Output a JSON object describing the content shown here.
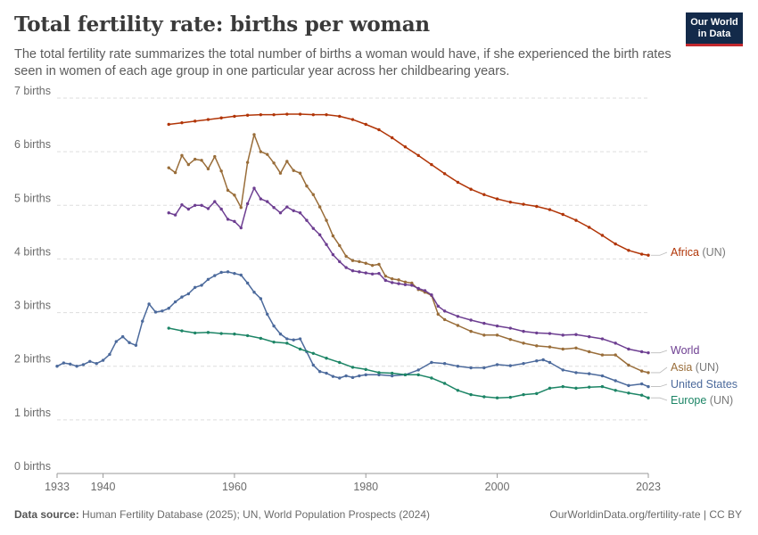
{
  "header": {
    "title": "Total fertility rate: births per woman",
    "subtitle": "The total fertility rate summarizes the total number of births a woman would have, if she experienced the birth rates seen in women of each age group in one particular year across her childbearing years.",
    "logo_line1": "Our World",
    "logo_line2": "in Data"
  },
  "footer": {
    "source_label": "Data source:",
    "source_text": "Human Fertility Database (2025); UN, World Population Prospects (2024)",
    "url_text": "OurWorldinData.org/fertility-rate | CC BY"
  },
  "chart_data": {
    "type": "line",
    "title": "Total fertility rate: births per woman",
    "xlabel": "",
    "ylabel": "",
    "xlim": [
      1933,
      2023
    ],
    "ylim": [
      0,
      7
    ],
    "grid": "horizontal-dashed",
    "legend": "right (inline labels)",
    "y_ticks": [
      {
        "value": 0,
        "label": "0 births"
      },
      {
        "value": 1,
        "label": "1 births"
      },
      {
        "value": 2,
        "label": "2 births"
      },
      {
        "value": 3,
        "label": "3 births"
      },
      {
        "value": 4,
        "label": "4 births"
      },
      {
        "value": 5,
        "label": "5 births"
      },
      {
        "value": 6,
        "label": "6 births"
      },
      {
        "value": 7,
        "label": "7 births"
      }
    ],
    "x_ticks": [
      {
        "value": 1933,
        "label": "1933"
      },
      {
        "value": 1940,
        "label": "1940"
      },
      {
        "value": 1960,
        "label": "1960"
      },
      {
        "value": 1980,
        "label": "1980"
      },
      {
        "value": 2000,
        "label": "2000"
      },
      {
        "value": 2023,
        "label": "2023"
      }
    ],
    "series": [
      {
        "name": "Africa",
        "suffix": "(UN)",
        "color": "#b13507",
        "x": [
          1950,
          1952,
          1954,
          1956,
          1958,
          1960,
          1962,
          1964,
          1966,
          1968,
          1970,
          1972,
          1974,
          1976,
          1978,
          1980,
          1982,
          1984,
          1986,
          1988,
          1990,
          1992,
          1994,
          1996,
          1998,
          2000,
          2002,
          2004,
          2006,
          2008,
          2010,
          2012,
          2014,
          2016,
          2018,
          2020,
          2022,
          2023
        ],
        "y": [
          6.51,
          6.54,
          6.57,
          6.6,
          6.63,
          6.66,
          6.68,
          6.69,
          6.69,
          6.7,
          6.7,
          6.69,
          6.69,
          6.66,
          6.6,
          6.51,
          6.41,
          6.26,
          6.09,
          5.93,
          5.76,
          5.59,
          5.43,
          5.3,
          5.2,
          5.12,
          5.06,
          5.02,
          4.98,
          4.92,
          4.83,
          4.72,
          4.59,
          4.44,
          4.28,
          4.16,
          4.09,
          4.07
        ]
      },
      {
        "name": "Asia",
        "suffix": "(UN)",
        "color": "#996d39",
        "x": [
          1950,
          1951,
          1952,
          1953,
          1954,
          1955,
          1956,
          1957,
          1958,
          1959,
          1960,
          1961,
          1962,
          1963,
          1964,
          1965,
          1966,
          1967,
          1968,
          1969,
          1970,
          1971,
          1972,
          1973,
          1974,
          1975,
          1976,
          1977,
          1978,
          1979,
          1980,
          1981,
          1982,
          1983,
          1984,
          1985,
          1986,
          1987,
          1988,
          1989,
          1990,
          1991,
          1992,
          1994,
          1996,
          1998,
          2000,
          2002,
          2004,
          2006,
          2008,
          2010,
          2012,
          2014,
          2016,
          2018,
          2020,
          2022,
          2023
        ],
        "y": [
          5.7,
          5.61,
          5.93,
          5.76,
          5.86,
          5.84,
          5.68,
          5.91,
          5.64,
          5.28,
          5.19,
          4.96,
          5.8,
          6.32,
          6.0,
          5.95,
          5.79,
          5.6,
          5.82,
          5.65,
          5.6,
          5.36,
          5.2,
          4.97,
          4.72,
          4.43,
          4.25,
          4.05,
          3.97,
          3.95,
          3.92,
          3.88,
          3.9,
          3.68,
          3.63,
          3.61,
          3.57,
          3.55,
          3.43,
          3.38,
          3.32,
          2.97,
          2.87,
          2.76,
          2.65,
          2.58,
          2.58,
          2.5,
          2.43,
          2.38,
          2.36,
          2.32,
          2.34,
          2.27,
          2.21,
          2.21,
          2.02,
          1.91,
          1.88
        ]
      },
      {
        "name": "World",
        "suffix": "",
        "color": "#6d3e91",
        "x": [
          1950,
          1951,
          1952,
          1953,
          1954,
          1955,
          1956,
          1957,
          1958,
          1959,
          1960,
          1961,
          1962,
          1963,
          1964,
          1965,
          1966,
          1967,
          1968,
          1969,
          1970,
          1971,
          1972,
          1973,
          1974,
          1975,
          1976,
          1977,
          1978,
          1979,
          1980,
          1981,
          1982,
          1983,
          1984,
          1985,
          1986,
          1987,
          1988,
          1989,
          1990,
          1991,
          1992,
          1994,
          1996,
          1998,
          2000,
          2002,
          2004,
          2006,
          2008,
          2010,
          2012,
          2014,
          2016,
          2018,
          2020,
          2022,
          2023
        ],
        "y": [
          4.86,
          4.82,
          5.01,
          4.93,
          5.0,
          5.0,
          4.94,
          5.07,
          4.93,
          4.74,
          4.7,
          4.58,
          5.03,
          5.32,
          5.12,
          5.07,
          4.96,
          4.86,
          4.97,
          4.9,
          4.86,
          4.72,
          4.57,
          4.45,
          4.27,
          4.08,
          3.95,
          3.84,
          3.78,
          3.76,
          3.74,
          3.72,
          3.73,
          3.6,
          3.56,
          3.54,
          3.52,
          3.51,
          3.45,
          3.41,
          3.33,
          3.12,
          3.03,
          2.93,
          2.86,
          2.8,
          2.75,
          2.71,
          2.65,
          2.62,
          2.61,
          2.58,
          2.59,
          2.55,
          2.51,
          2.43,
          2.32,
          2.27,
          2.25
        ]
      },
      {
        "name": "United States",
        "suffix": "",
        "color": "#4c6a9c",
        "x": [
          1933,
          1934,
          1935,
          1936,
          1937,
          1938,
          1939,
          1940,
          1941,
          1942,
          1943,
          1944,
          1945,
          1946,
          1947,
          1948,
          1949,
          1950,
          1951,
          1952,
          1953,
          1954,
          1955,
          1956,
          1957,
          1958,
          1959,
          1960,
          1961,
          1962,
          1963,
          1964,
          1965,
          1966,
          1967,
          1968,
          1969,
          1970,
          1971,
          1972,
          1973,
          1974,
          1975,
          1976,
          1977,
          1978,
          1979,
          1980,
          1982,
          1984,
          1986,
          1988,
          1990,
          1992,
          1994,
          1996,
          1998,
          2000,
          2002,
          2004,
          2006,
          2007,
          2008,
          2010,
          2012,
          2014,
          2016,
          2018,
          2020,
          2022,
          2023
        ],
        "y": [
          2.0,
          2.06,
          2.04,
          2.0,
          2.03,
          2.09,
          2.05,
          2.11,
          2.22,
          2.46,
          2.55,
          2.44,
          2.39,
          2.84,
          3.16,
          3.01,
          3.03,
          3.08,
          3.2,
          3.29,
          3.35,
          3.47,
          3.51,
          3.62,
          3.69,
          3.75,
          3.76,
          3.73,
          3.7,
          3.55,
          3.38,
          3.26,
          2.97,
          2.75,
          2.6,
          2.51,
          2.49,
          2.51,
          2.27,
          2.02,
          1.9,
          1.87,
          1.81,
          1.78,
          1.82,
          1.79,
          1.82,
          1.84,
          1.84,
          1.82,
          1.84,
          1.93,
          2.07,
          2.05,
          2.0,
          1.97,
          1.97,
          2.03,
          2.01,
          2.05,
          2.1,
          2.12,
          2.07,
          1.93,
          1.88,
          1.86,
          1.82,
          1.73,
          1.64,
          1.67,
          1.62
        ]
      },
      {
        "name": "Europe",
        "suffix": "(UN)",
        "color": "#1d8566",
        "x": [
          1950,
          1952,
          1954,
          1956,
          1958,
          1960,
          1962,
          1964,
          1966,
          1968,
          1970,
          1972,
          1974,
          1976,
          1978,
          1980,
          1982,
          1984,
          1986,
          1988,
          1990,
          1992,
          1994,
          1996,
          1998,
          2000,
          2002,
          2004,
          2006,
          2008,
          2010,
          2012,
          2014,
          2016,
          2018,
          2020,
          2022,
          2023
        ],
        "y": [
          2.71,
          2.66,
          2.62,
          2.63,
          2.61,
          2.6,
          2.57,
          2.52,
          2.45,
          2.43,
          2.32,
          2.24,
          2.15,
          2.07,
          1.98,
          1.94,
          1.88,
          1.87,
          1.84,
          1.84,
          1.78,
          1.68,
          1.55,
          1.47,
          1.43,
          1.41,
          1.42,
          1.47,
          1.49,
          1.59,
          1.62,
          1.59,
          1.61,
          1.62,
          1.55,
          1.5,
          1.46,
          1.41
        ]
      }
    ]
  }
}
